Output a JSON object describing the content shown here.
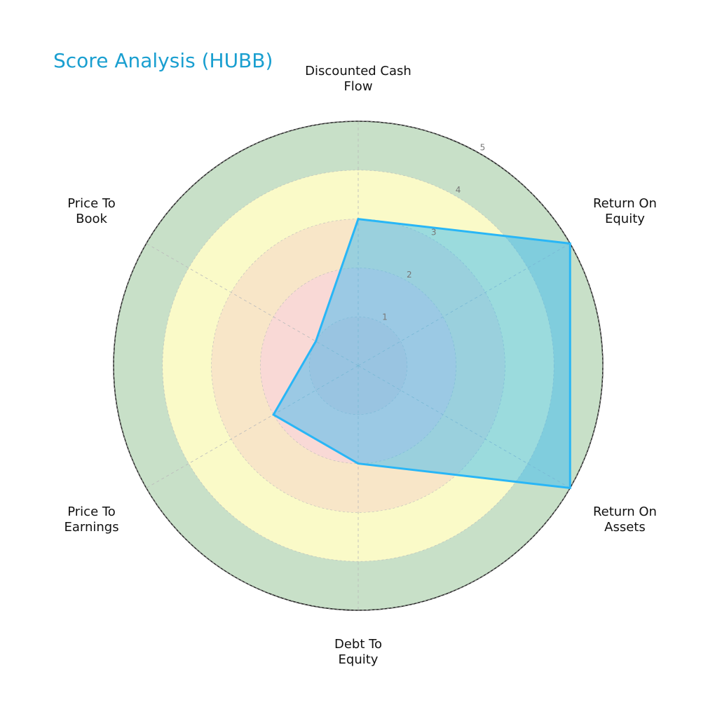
{
  "chart_data": {
    "type": "radar",
    "title": "Score Analysis (HUBB)",
    "categories": [
      "Discounted Cash\nFlow",
      "Return On\nEquity",
      "Return On\nAssets",
      "Debt To\nEquity",
      "Price To\nEarnings",
      "Price To\nBook"
    ],
    "values": [
      3,
      5,
      5,
      2,
      2,
      1
    ],
    "color": "#29b6f6",
    "rlim": [
      0,
      5
    ],
    "rticks": [
      1,
      2,
      3,
      4,
      5
    ],
    "grid": true
  }
}
